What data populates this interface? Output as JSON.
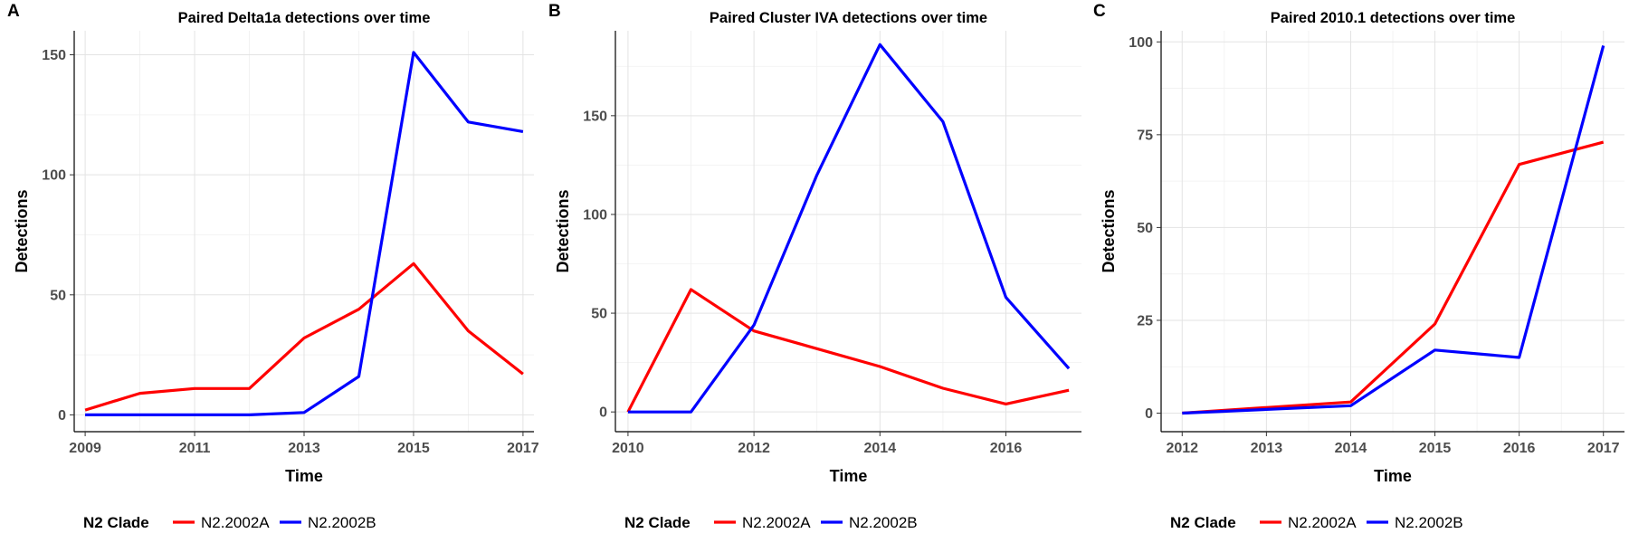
{
  "legend_title": "N2 Clade",
  "series_colors": {
    "N2.2002A": "#ff0000",
    "N2.2002B": "#0000ff"
  },
  "chart_data": [
    {
      "type": "line",
      "panel_label": "A",
      "title": "Paired Delta1a detections over time",
      "xlabel": "Time",
      "ylabel": "Detections",
      "xlim": [
        2008.8,
        2017.2
      ],
      "ylim": [
        -7,
        160
      ],
      "xticks": [
        2009,
        2011,
        2013,
        2015,
        2017
      ],
      "yticks": [
        0,
        50,
        100,
        150
      ],
      "x": [
        2009,
        2010,
        2011,
        2012,
        2013,
        2014,
        2015,
        2016,
        2017
      ],
      "grid": true,
      "legend_position": "bottom",
      "series": [
        {
          "name": "N2.2002A",
          "values": [
            2,
            9,
            11,
            11,
            32,
            44,
            63,
            35,
            17
          ]
        },
        {
          "name": "N2.2002B",
          "values": [
            0,
            0,
            0,
            0,
            1,
            16,
            151,
            122,
            118
          ]
        }
      ]
    },
    {
      "type": "line",
      "panel_label": "B",
      "title": "Paired Cluster IVA detections over time",
      "xlabel": "Time",
      "ylabel": "Detections",
      "xlim": [
        2009.8,
        2017.2
      ],
      "ylim": [
        -10,
        193
      ],
      "xticks": [
        2010,
        2012,
        2014,
        2016
      ],
      "yticks": [
        0,
        50,
        100,
        150
      ],
      "x": [
        2010,
        2011,
        2012,
        2013,
        2014,
        2015,
        2016,
        2017
      ],
      "grid": true,
      "legend_position": "bottom",
      "series": [
        {
          "name": "N2.2002A",
          "values": [
            0,
            62,
            41,
            32,
            23,
            12,
            4,
            11
          ]
        },
        {
          "name": "N2.2002B",
          "values": [
            0,
            0,
            44,
            120,
            186,
            147,
            58,
            22
          ]
        }
      ]
    },
    {
      "type": "line",
      "panel_label": "C",
      "title": "Paired 2010.1 detections over time",
      "xlabel": "Time",
      "ylabel": "Detections",
      "xlim": [
        2011.75,
        2017.25
      ],
      "ylim": [
        -5,
        103
      ],
      "xticks": [
        2012,
        2013,
        2014,
        2015,
        2016,
        2017
      ],
      "yticks": [
        0,
        25,
        50,
        75,
        100
      ],
      "x": [
        2012,
        2013,
        2014,
        2015,
        2016,
        2017
      ],
      "grid": true,
      "legend_position": "bottom",
      "series": [
        {
          "name": "N2.2002A",
          "values": [
            0,
            1.5,
            3,
            24,
            67,
            73
          ]
        },
        {
          "name": "N2.2002B",
          "values": [
            0,
            1,
            2,
            17,
            15,
            99
          ]
        }
      ]
    }
  ]
}
